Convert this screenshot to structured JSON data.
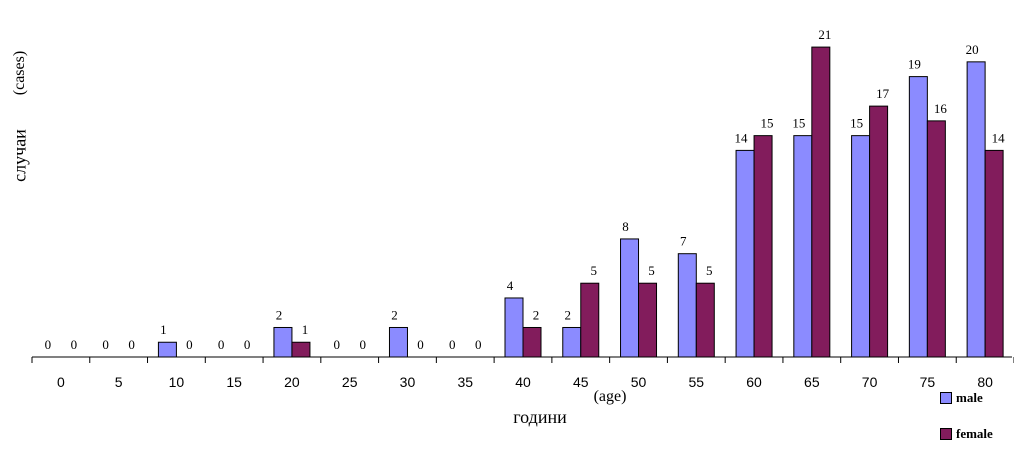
{
  "chart_data": {
    "type": "bar",
    "categories": [
      "0",
      "5",
      "10",
      "15",
      "20",
      "25",
      "30",
      "35",
      "40",
      "45",
      "50",
      "55",
      "60",
      "65",
      "70",
      "75",
      "80"
    ],
    "series": [
      {
        "name": "male",
        "color": "#8b8bff",
        "values": [
          0,
          0,
          1,
          0,
          2,
          0,
          2,
          0,
          4,
          2,
          8,
          7,
          14,
          15,
          15,
          19,
          20
        ]
      },
      {
        "name": "female",
        "color": "#821c5c",
        "values": [
          0,
          0,
          0,
          0,
          1,
          0,
          0,
          0,
          2,
          5,
          5,
          5,
          15,
          21,
          17,
          16,
          14
        ]
      }
    ],
    "xlabel": "години",
    "xlabel_en": "(age)",
    "ylabel": "случаи",
    "ylabel_en": "(cases)",
    "ylim": [
      0,
      23
    ],
    "grid": false,
    "legend_position": "bottom-right"
  }
}
